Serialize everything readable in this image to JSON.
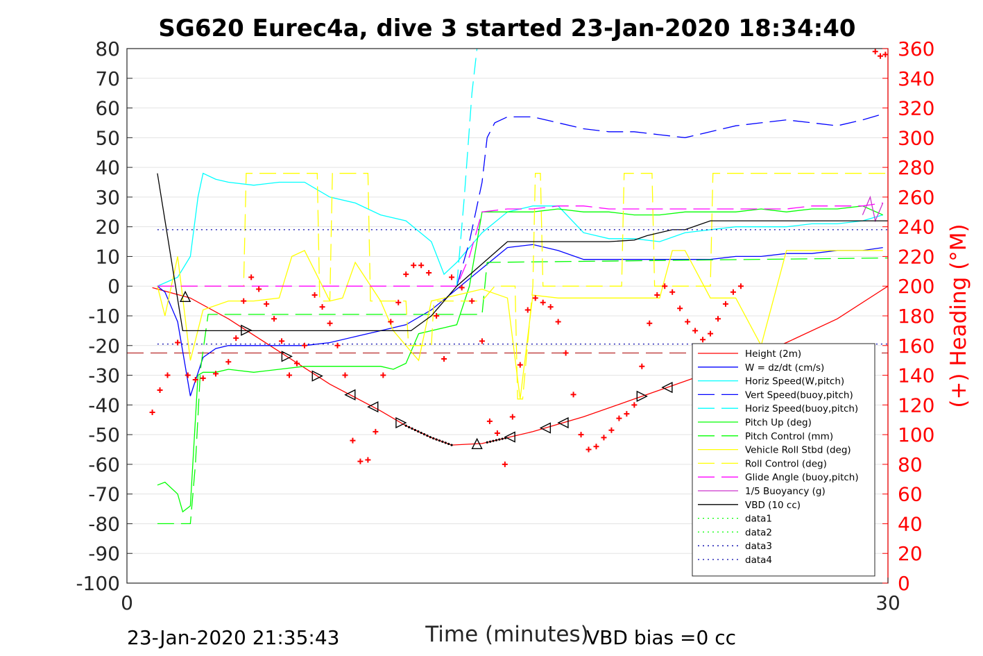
{
  "chart_data": {
    "type": "line",
    "title": "SG620 Eurec4a, dive 3 started 23-Jan-2020 18:34:40",
    "xlabel": "Time (minutes)",
    "ylabel_right": "(+) Heading (°M)",
    "xlim": [
      0,
      30
    ],
    "ylim": [
      -100,
      80
    ],
    "ylim_right": [
      0,
      360
    ],
    "x_ticks": [
      "0",
      "30"
    ],
    "y_ticks": [
      "80",
      "70",
      "60",
      "50",
      "40",
      "30",
      "20",
      "10",
      "0",
      "-10",
      "-20",
      "-30",
      "-40",
      "-50",
      "-60",
      "-70",
      "-80",
      "-90",
      "-100"
    ],
    "y_ticks_right": [
      "360",
      "340",
      "320",
      "300",
      "280",
      "260",
      "240",
      "220",
      "200",
      "180",
      "160",
      "140",
      "120",
      "100",
      "80",
      "60",
      "40",
      "20",
      "0"
    ],
    "grid": "horizontal",
    "legend_position": "bottom-right",
    "footer_left": "23-Jan-2020 21:35:43",
    "footer_right": "VBD bias =0 cc",
    "series": [
      {
        "name": "Height (2m)",
        "color": "#ff0000",
        "style": "solid",
        "x": [
          1.0,
          2.5,
          4.0,
          6.0,
          8.0,
          10.0,
          11.0,
          12.0,
          12.8,
          14.0,
          16.0,
          18.0,
          20.0,
          22.0,
          24.0,
          26.0,
          28.0,
          30.0
        ],
        "y": [
          -0.5,
          -4,
          -11,
          -22,
          -33,
          -42,
          -47,
          -51,
          -53.5,
          -53,
          -49,
          -44,
          -38,
          -32,
          -26,
          -19,
          -11,
          0
        ]
      },
      {
        "name": "W = dz/dt (cm/s)",
        "color": "#0000ff",
        "style": "solid",
        "x": [
          1.2,
          1.5,
          2.0,
          2.5,
          3.0,
          3.5,
          4.0,
          5.0,
          6.0,
          7.0,
          8.0,
          9.0,
          10.0,
          11.0,
          12.0,
          13.0,
          14.0,
          15.0,
          16.0,
          17.0,
          18.0,
          19.0,
          20.0,
          21.0,
          22.0,
          23.0,
          24.0,
          25.0,
          26.0,
          27.0,
          28.0,
          29.0,
          29.8
        ],
        "y": [
          0,
          -2,
          -12,
          -37,
          -24,
          -21,
          -20,
          -20,
          -20,
          -20,
          -19,
          -17,
          -15,
          -13,
          -8,
          -1,
          6,
          13,
          14,
          12,
          9,
          9,
          9,
          9,
          9,
          9,
          10,
          10,
          11,
          11,
          12,
          12,
          13
        ]
      },
      {
        "name": "Horiz Speed(W,pitch)",
        "color": "#00ffff",
        "style": "solid",
        "x": [
          1.2,
          2.0,
          2.5,
          2.8,
          3.0,
          3.5,
          4.0,
          5.0,
          6.0,
          7.0,
          8.0,
          9.0,
          10.0,
          11.0,
          12.0,
          12.5,
          13.0,
          14.0,
          15.0,
          16.0,
          17.0,
          18.0,
          19.0,
          20.0,
          21.0,
          22.0,
          23.0,
          24.0,
          25.0,
          26.0,
          27.0,
          28.0,
          29.0,
          29.8
        ],
        "y": [
          0,
          3,
          10,
          30,
          38,
          36,
          35,
          34,
          35,
          35,
          30,
          28,
          24,
          22,
          15,
          4,
          8,
          18,
          25,
          27,
          27,
          18,
          16,
          16,
          15,
          18,
          19,
          20,
          20,
          20,
          21,
          21,
          22,
          24
        ]
      },
      {
        "name": "Vert Speed(buoy,pitch)",
        "color": "#0000ff",
        "style": "dash",
        "x": [
          13.0,
          13.5,
          14.0,
          14.2,
          14.5,
          15.0,
          16.0,
          17.0,
          18.0,
          19.0,
          20.0,
          21.0,
          22.0,
          23.0,
          24.0,
          25.0,
          26.0,
          27.0,
          28.0,
          29.0,
          29.8
        ],
        "y": [
          0,
          15,
          35,
          50,
          55,
          57,
          57,
          55,
          53,
          52,
          52,
          51,
          50,
          52,
          54,
          55,
          56,
          55,
          54,
          56,
          58
        ]
      },
      {
        "name": "Horiz Speed(buoy,pitch)",
        "color": "#00ffff",
        "style": "dash",
        "x": [
          13.0,
          13.3,
          13.6,
          13.8
        ],
        "y": [
          0,
          30,
          65,
          80
        ]
      },
      {
        "name": "Pitch Up (deg)",
        "color": "#00ff00",
        "style": "solid",
        "x": [
          1.2,
          1.5,
          2.0,
          2.2,
          2.5,
          2.8,
          3.0,
          3.5,
          4.0,
          5.0,
          6.0,
          7.0,
          8.0,
          9.0,
          10.0,
          10.5,
          11.0,
          11.5,
          12.0,
          12.5,
          13.0,
          13.5,
          14.0,
          15.0,
          16.0,
          17.0,
          18.0,
          19.0,
          20.0,
          21.0,
          22.0,
          23.0,
          24.0,
          25.0,
          26.0,
          27.0,
          28.0,
          29.0,
          29.8
        ],
        "y": [
          -67,
          -66,
          -70,
          -76,
          -74,
          -30,
          -29,
          -29,
          -28,
          -29,
          -28,
          -27,
          -27,
          -27,
          -27,
          -28,
          -26,
          -16,
          -15,
          -14,
          -13,
          0,
          25,
          25,
          25,
          26,
          25,
          25,
          24,
          24,
          25,
          25,
          25,
          26,
          25,
          26,
          26,
          27,
          24
        ]
      },
      {
        "name": "Pitch Control (mm)",
        "color": "#00ff00",
        "style": "dash",
        "x": [
          1.2,
          2.2,
          2.3,
          2.5,
          2.7,
          2.9,
          3.2,
          10.5,
          11.0,
          14.0,
          14.2,
          30.0
        ],
        "y": [
          -80,
          -80,
          -80,
          -80,
          -60,
          -28,
          -9.5,
          -9.5,
          -9.5,
          -9.5,
          8,
          9.5
        ]
      },
      {
        "name": "Vehicle Roll Stbd (deg)",
        "color": "#ffff00",
        "style": "solid",
        "x": [
          1.2,
          1.5,
          2.0,
          2.5,
          3.0,
          4.0,
          5.0,
          6.0,
          6.5,
          7.0,
          8.0,
          8.5,
          9.0,
          10.0,
          10.5,
          11.0,
          11.5,
          12.0,
          13.0,
          14.0,
          15.0,
          15.5,
          16.0,
          17.0,
          18.0,
          19.0,
          20.0,
          21.0,
          21.5,
          22.0,
          23.0,
          24.0,
          25.0,
          26.0,
          27.0,
          28.0,
          29.0,
          29.8
        ],
        "y": [
          0,
          -10,
          10,
          -25,
          -8,
          -5,
          -5,
          -4,
          10,
          12,
          -5,
          -4,
          8,
          -5,
          -15,
          -20,
          -25,
          -5,
          -3,
          -1,
          -4,
          -38,
          -3,
          -4,
          -4,
          -4,
          -4,
          -4,
          12,
          12,
          -4,
          -4,
          -20,
          12,
          12,
          12,
          12,
          12
        ]
      },
      {
        "name": "Roll Control (deg)",
        "color": "#ffff00",
        "style": "dash",
        "x": [
          1.2,
          4.6,
          4.7,
          7.5,
          7.6,
          8.0,
          8.1,
          9.5,
          9.6,
          11.0,
          11.1,
          12.0,
          12.1,
          14.0,
          14.5,
          15.3,
          15.4,
          15.6,
          16.0,
          16.1,
          16.3,
          16.4,
          19.5,
          19.6,
          20.7,
          20.8,
          23.0,
          23.1,
          30.0
        ],
        "y": [
          0,
          0,
          38,
          38,
          -5,
          -5,
          38,
          38,
          -5,
          -5,
          -20,
          -20,
          -5,
          -5,
          0,
          0,
          -38,
          -38,
          0,
          38,
          38,
          0,
          0,
          38,
          38,
          0,
          0,
          38,
          38
        ]
      },
      {
        "name": "Glide Angle (buoy,pitch)",
        "color": "#ff00ff",
        "style": "dash",
        "x": [
          1.2,
          13.0,
          13.5,
          14.0,
          15.0,
          16.0,
          17.0,
          18.0,
          19.0,
          20.0,
          21.0,
          22.0,
          23.0,
          24.0,
          25.0,
          26.0,
          27.0,
          28.0,
          29.0,
          29.8
        ],
        "y": [
          0,
          0,
          10,
          25,
          26,
          26,
          27,
          27,
          26,
          26,
          26,
          26,
          26,
          26,
          26,
          26,
          27,
          27,
          27,
          28
        ]
      },
      {
        "name": "1/5 Buoyancy (g)",
        "color": "#cc33cc",
        "style": "solid",
        "x": [
          29.0,
          29.3,
          29.5,
          29.8
        ],
        "y": [
          24,
          30,
          22,
          28
        ]
      },
      {
        "name": "VBD (10 cc)",
        "color": "#000000",
        "style": "solid",
        "x": [
          1.2,
          2.2,
          11.2,
          12.0,
          13.0,
          15.0,
          18.5,
          19.0,
          20.0,
          20.5,
          21.5,
          22.0,
          23.0,
          30.0
        ],
        "y": [
          38,
          -15,
          -15,
          -10,
          0,
          15,
          15,
          15,
          15.5,
          17,
          19,
          19,
          22,
          22
        ]
      },
      {
        "name": "data1",
        "color": "#00ff00",
        "style": "dot",
        "x": [],
        "y": []
      },
      {
        "name": "data2",
        "color": "#00ff00",
        "style": "dot",
        "x": [],
        "y": []
      },
      {
        "name": "data3",
        "color": "#0000aa",
        "style": "dot",
        "x": [
          1.2,
          30.0
        ],
        "y": [
          -19.5,
          -19.5
        ]
      },
      {
        "name": "data4",
        "color": "#0000aa",
        "style": "dot",
        "x": [
          1.2,
          30.0
        ],
        "y": [
          19,
          19
        ]
      }
    ],
    "reference_line": {
      "color": "#aa0000",
      "style": "dash",
      "y": -22.5
    },
    "heading_points": {
      "color": "#ff0000",
      "marker": "+",
      "axis": "right",
      "x": [
        1.0,
        1.3,
        1.6,
        2.0,
        2.4,
        2.7,
        3.0,
        3.5,
        4.0,
        4.3,
        4.6,
        4.9,
        5.2,
        5.5,
        5.8,
        6.1,
        6.4,
        6.7,
        7.0,
        7.4,
        7.7,
        8.0,
        8.3,
        8.6,
        8.9,
        9.2,
        9.5,
        9.8,
        10.1,
        10.4,
        10.7,
        11.0,
        11.3,
        11.6,
        11.9,
        12.2,
        12.5,
        12.8,
        13.2,
        13.6,
        14.0,
        14.3,
        14.6,
        14.9,
        15.2,
        15.5,
        15.8,
        16.1,
        16.4,
        16.7,
        17.0,
        17.3,
        17.6,
        17.9,
        18.2,
        18.5,
        18.8,
        19.1,
        19.4,
        19.7,
        20.0,
        20.3,
        20.6,
        20.9,
        21.2,
        21.5,
        21.8,
        22.1,
        22.4,
        22.7,
        23.0,
        23.3,
        23.6,
        23.9,
        24.2,
        29.5,
        29.7,
        29.9
      ],
      "y": [
        115,
        130,
        140,
        162,
        140,
        137,
        138,
        141,
        149,
        165,
        190,
        206,
        198,
        188,
        178,
        163,
        140,
        148,
        160,
        194,
        186,
        175,
        160,
        140,
        96,
        82,
        83,
        102,
        140,
        176,
        189,
        208,
        214,
        214,
        209,
        180,
        151,
        206,
        199,
        190,
        163,
        109,
        101,
        80,
        112,
        147,
        184,
        192,
        189,
        186,
        176,
        155,
        127,
        100,
        90,
        92,
        98,
        103,
        111,
        114,
        120,
        146,
        175,
        194,
        200,
        196,
        185,
        176,
        170,
        164,
        168,
        178,
        188,
        196,
        200,
        358,
        355,
        356
      ]
    }
  }
}
